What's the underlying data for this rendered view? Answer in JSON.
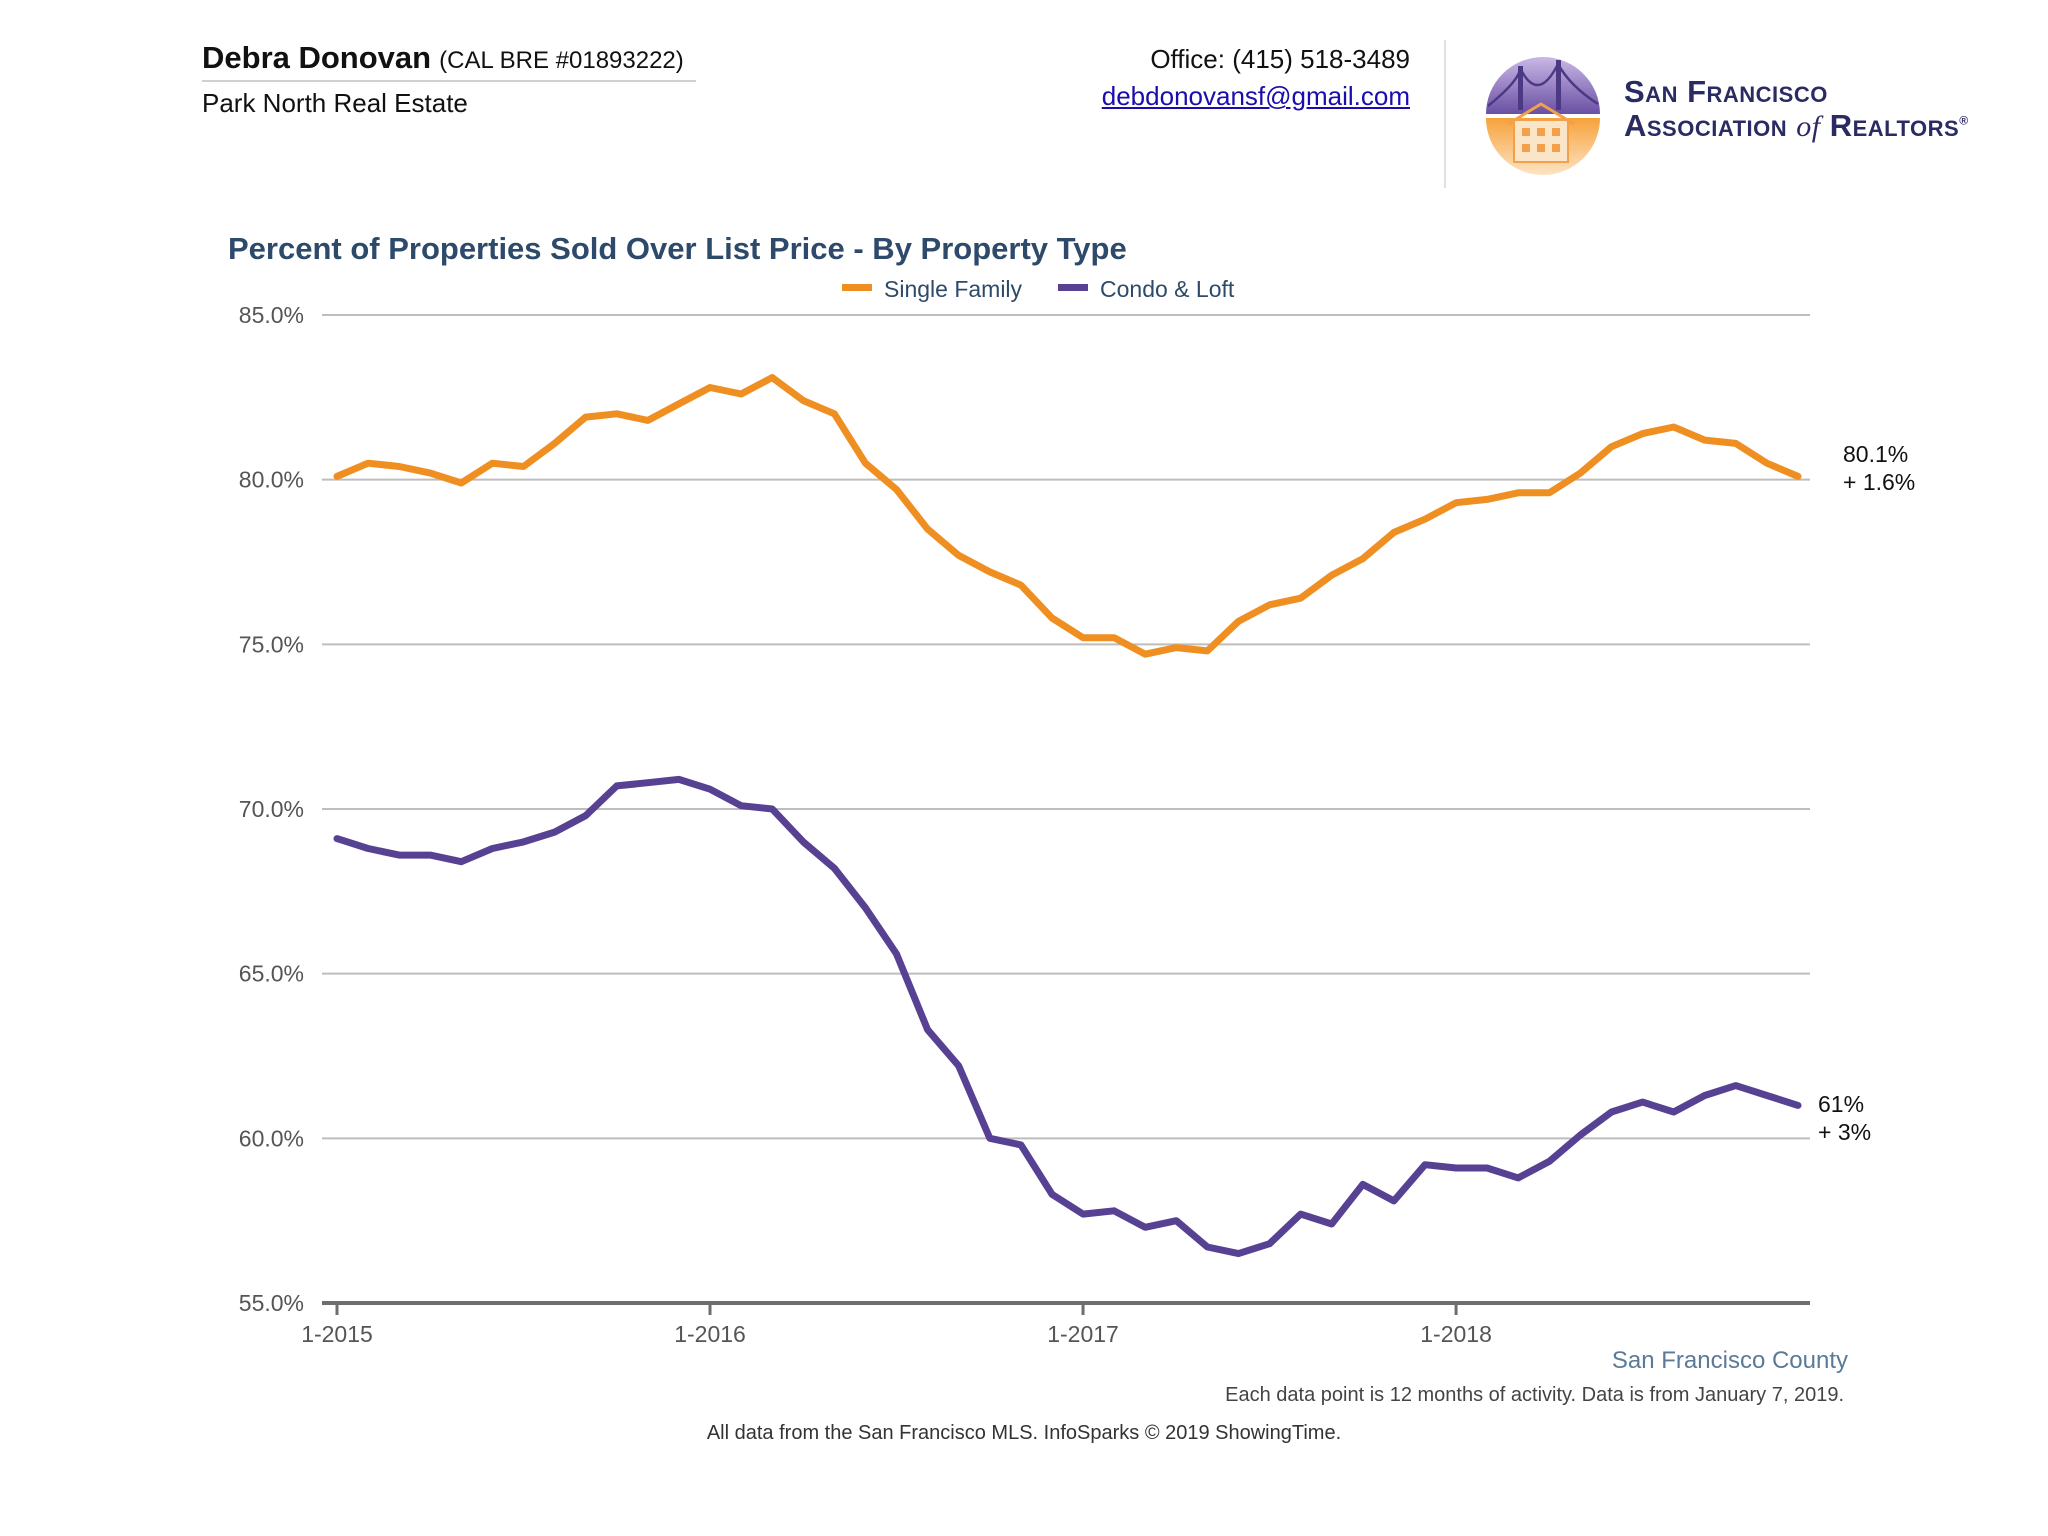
{
  "header": {
    "agent_name": "Debra Donovan",
    "license": "(CAL BRE #01893222)",
    "company": "Park North Real Estate",
    "office_phone": "Office: (415) 518-3489",
    "email": "debdonovansf@gmail.com"
  },
  "logo": {
    "line1": "San Francisco",
    "line2_a": "Association ",
    "line2_of": "of",
    "line2_b": " Realtors",
    "registered": "®"
  },
  "colors": {
    "single_family": "#ef8f22",
    "condo_loft": "#574193",
    "title": "#2e4a6b",
    "grid": "#bdbdbd"
  },
  "chart_data": {
    "type": "line",
    "title": "Percent of Properties Sold Over List Price - By Property Type",
    "legend_position": "top-center",
    "x_ticks": [
      "1-2015",
      "1-2016",
      "1-2017",
      "1-2018"
    ],
    "y_ticks": [
      "85.0%",
      "80.0%",
      "75.0%",
      "70.0%",
      "65.0%",
      "60.0%",
      "55.0%"
    ],
    "ylim": [
      55,
      85
    ],
    "grid": true,
    "x": [
      "2015-01",
      "2015-02",
      "2015-03",
      "2015-04",
      "2015-05",
      "2015-06",
      "2015-07",
      "2015-08",
      "2015-09",
      "2015-10",
      "2015-11",
      "2015-12",
      "2016-01",
      "2016-02",
      "2016-03",
      "2016-04",
      "2016-05",
      "2016-06",
      "2016-07",
      "2016-08",
      "2016-09",
      "2016-10",
      "2016-11",
      "2016-12",
      "2017-01",
      "2017-02",
      "2017-03",
      "2017-04",
      "2017-05",
      "2017-06",
      "2017-07",
      "2017-08",
      "2017-09",
      "2017-10",
      "2017-11",
      "2017-12",
      "2018-01",
      "2018-02",
      "2018-03",
      "2018-04",
      "2018-05",
      "2018-06",
      "2018-07",
      "2018-08",
      "2018-09",
      "2018-10",
      "2018-11",
      "2018-12"
    ],
    "series": [
      {
        "name": "Single Family",
        "color": "#ef8f22",
        "values": [
          80.1,
          80.5,
          80.4,
          80.2,
          79.9,
          80.5,
          80.4,
          81.1,
          81.9,
          82.0,
          81.8,
          82.3,
          82.8,
          82.6,
          83.1,
          82.4,
          82.0,
          80.5,
          79.7,
          78.5,
          77.7,
          77.2,
          76.8,
          75.8,
          75.2,
          75.2,
          74.7,
          74.9,
          74.8,
          75.7,
          76.2,
          76.4,
          77.1,
          77.6,
          78.4,
          78.8,
          79.3,
          79.4,
          79.6,
          79.6,
          80.2,
          81.0,
          81.4,
          81.6,
          81.2,
          81.1,
          80.5,
          80.1
        ],
        "end_label": "80.1%",
        "end_change": "+ 1.6%"
      },
      {
        "name": "Condo & Loft",
        "color": "#574193",
        "values": [
          69.1,
          68.8,
          68.6,
          68.6,
          68.4,
          68.8,
          69.0,
          69.3,
          69.8,
          70.7,
          70.8,
          70.9,
          70.6,
          70.1,
          70.0,
          69.0,
          68.2,
          67.0,
          65.6,
          63.3,
          62.2,
          60.0,
          59.8,
          58.3,
          57.7,
          57.8,
          57.3,
          57.5,
          56.7,
          56.5,
          56.8,
          57.7,
          57.4,
          58.6,
          58.1,
          59.2,
          59.1,
          59.1,
          58.8,
          59.3,
          60.1,
          60.8,
          61.1,
          60.8,
          61.3,
          61.6,
          61.3,
          61.0
        ],
        "end_label": "61%",
        "end_change": "+ 3%"
      }
    ]
  },
  "footer": {
    "region": "San Francisco County",
    "note": "Each data point is 12 months of activity. Data is from January 7, 2019.",
    "source": "All data from the San Francisco MLS. InfoSparks © 2019 ShowingTime."
  }
}
